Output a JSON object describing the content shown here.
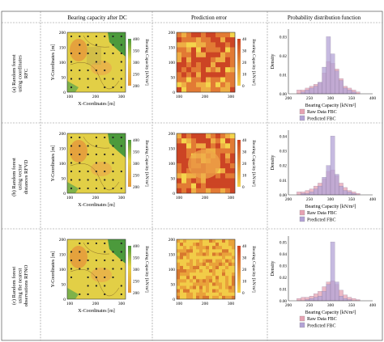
{
  "column_headers": [
    "Bearing capacity after DC",
    "Prediction error",
    "Probability distribution function"
  ],
  "rows": [
    {
      "label_lines": [
        "(a) Random forest",
        "using coordinates",
        "RFC"
      ],
      "map_colorbar_ticks": [
        "400",
        "350",
        "300",
        "250",
        "200"
      ],
      "error_colorbar_ticks": [
        "40",
        "30",
        "20",
        "10",
        "0"
      ],
      "hist_yticks": [
        "0.03",
        "0.02",
        "0.01",
        "0.00"
      ],
      "hist_ylim": [
        0,
        0.034
      ]
    },
    {
      "label_lines": [
        "(b) Random forest",
        "using vector",
        "distances RFVD"
      ],
      "map_colorbar_ticks": [
        "400",
        "350",
        "300",
        "250",
        "200"
      ],
      "error_colorbar_ticks": [
        "40",
        "30",
        "20",
        "10",
        "0"
      ],
      "hist_yticks": [
        "0.04",
        "0.03",
        "0.02",
        "0.01",
        "0.00"
      ],
      "hist_ylim": [
        0,
        0.044
      ]
    },
    {
      "label_lines": [
        "(c) Random forest",
        "using the nearest",
        "observations RFNO"
      ],
      "map_colorbar_ticks": [
        "400",
        "350",
        "300",
        "250",
        "200"
      ],
      "error_colorbar_ticks": [
        "40",
        "30",
        "20",
        "10",
        "0"
      ],
      "hist_yticks": [
        "0.05",
        "0.04",
        "0.03",
        "0.02",
        "0.01",
        "0.00"
      ],
      "hist_ylim": [
        0,
        0.055
      ]
    }
  ],
  "axes": {
    "map_xlabel": "X-Coordinates [m]",
    "map_ylabel": "Y-Coordinates [m]",
    "map_xticks": [
      "100",
      "200",
      "300"
    ],
    "map_yticks": [
      "200",
      "150",
      "100",
      "50",
      "0"
    ],
    "map_cbar_label": "Bearing Capacity [kN/m²]",
    "error_cbar_label": "Bearing Capacity [kN/m²]",
    "hist_xlabel": "Bearing Capacity [kN/m²]",
    "hist_ylabel": "Density",
    "hist_xticks": [
      "200",
      "250",
      "300",
      "350",
      "400"
    ]
  },
  "legend": {
    "raw": "Raw Data FBC",
    "pred": "Predicted FBC"
  },
  "colors": {
    "raw": "#e6a3b3",
    "pred": "#b3a3d6",
    "map_green": "#4c9a3c",
    "map_yellow": "#e2cf46",
    "map_orange": "#e59a3c",
    "err_red": "#cc4424",
    "err_yellow": "#f4d44c"
  },
  "chart_data": [
    {
      "type": "bar",
      "title": "",
      "xlabel": "Bearing Capacity [kN/m²]",
      "ylabel": "Density",
      "xlim": [
        200,
        400
      ],
      "ylim": [
        0,
        0.034
      ],
      "bin_width": 10,
      "bins_start": [
        220,
        230,
        240,
        250,
        260,
        270,
        280,
        290,
        300,
        310,
        320,
        330,
        340,
        350,
        360
      ],
      "series": [
        {
          "name": "Raw Data FBC",
          "values": [
            0.002,
            0.002,
            0.003,
            0.004,
            0.005,
            0.006,
            0.011,
            0.017,
            0.016,
            0.013,
            0.008,
            0.004,
            0.003,
            0.002,
            0.001
          ]
        },
        {
          "name": "Predicted FBC",
          "values": [
            0.0,
            0.001,
            0.002,
            0.003,
            0.004,
            0.006,
            0.014,
            0.03,
            0.021,
            0.012,
            0.007,
            0.003,
            0.002,
            0.001,
            0.0
          ]
        }
      ]
    },
    {
      "type": "bar",
      "title": "",
      "xlabel": "Bearing Capacity [kN/m²]",
      "ylabel": "Density",
      "xlim": [
        200,
        400
      ],
      "ylim": [
        0,
        0.044
      ],
      "bin_width": 10,
      "bins_start": [
        220,
        230,
        240,
        250,
        260,
        270,
        280,
        290,
        300,
        310,
        320,
        330,
        340,
        350,
        360
      ],
      "series": [
        {
          "name": "Raw Data FBC",
          "values": [
            0.002,
            0.002,
            0.003,
            0.004,
            0.006,
            0.008,
            0.011,
            0.016,
            0.017,
            0.013,
            0.008,
            0.005,
            0.003,
            0.002,
            0.001
          ]
        },
        {
          "name": "Predicted FBC",
          "values": [
            0.0,
            0.001,
            0.001,
            0.002,
            0.004,
            0.006,
            0.012,
            0.02,
            0.04,
            0.014,
            0.006,
            0.003,
            0.002,
            0.001,
            0.0
          ]
        }
      ]
    },
    {
      "type": "bar",
      "title": "",
      "xlabel": "Bearing Capacity [kN/m²]",
      "ylabel": "Density",
      "xlim": [
        200,
        400
      ],
      "ylim": [
        0,
        0.055
      ],
      "bin_width": 10,
      "bins_start": [
        220,
        230,
        240,
        250,
        260,
        270,
        280,
        290,
        300,
        310,
        320,
        330,
        340,
        350,
        360
      ],
      "series": [
        {
          "name": "Raw Data FBC",
          "values": [
            0.002,
            0.003,
            0.003,
            0.004,
            0.006,
            0.008,
            0.012,
            0.016,
            0.017,
            0.014,
            0.009,
            0.005,
            0.003,
            0.002,
            0.001
          ]
        },
        {
          "name": "Predicted FBC",
          "values": [
            0.0,
            0.0,
            0.001,
            0.002,
            0.003,
            0.004,
            0.008,
            0.014,
            0.05,
            0.016,
            0.004,
            0.002,
            0.001,
            0.0,
            0.0
          ]
        }
      ]
    }
  ]
}
